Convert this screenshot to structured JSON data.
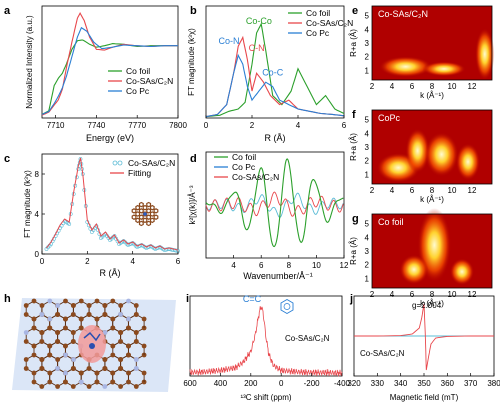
{
  "figure": {
    "panel_labels": [
      "a",
      "b",
      "c",
      "d",
      "e",
      "f",
      "g",
      "h",
      "i",
      "j"
    ]
  },
  "chart_data": [
    {
      "panel": "a",
      "type": "line",
      "xlabel": "Energy (eV)",
      "ylabel": "Normalized Intensity (a.u.)",
      "xlim": [
        7700,
        7800
      ],
      "xticks": [
        7710,
        7740,
        7770,
        7800
      ],
      "colors": {
        "Co foil": "#2ca02c",
        "Co-SAs/C2N": "#e8474c",
        "Co Pc": "#2a7fd4"
      },
      "legend": [
        "Co foil",
        "Co-SAs/C₂N",
        "Co Pc"
      ],
      "legend_position": "bottom-right",
      "series": [
        {
          "name": "Co foil",
          "x": [
            7700,
            7705,
            7709,
            7712,
            7715,
            7718,
            7722,
            7726,
            7730,
            7735,
            7740,
            7746,
            7752,
            7760,
            7770,
            7780,
            7790,
            7800
          ],
          "y": [
            0.05,
            0.1,
            0.45,
            0.55,
            0.62,
            0.75,
            0.95,
            1.07,
            1.08,
            1.02,
            0.98,
            1.0,
            1.03,
            1.02,
            0.99,
            1.0,
            1.0,
            1.0
          ]
        },
        {
          "name": "Co-SAs/C₂N",
          "x": [
            7700,
            7705,
            7709,
            7712,
            7715,
            7718,
            7722,
            7726,
            7728,
            7731,
            7735,
            7740,
            7746,
            7752,
            7760,
            7770,
            7780,
            7790,
            7800
          ],
          "y": [
            0.04,
            0.08,
            0.18,
            0.25,
            0.4,
            0.7,
            1.05,
            1.38,
            1.45,
            1.35,
            1.12,
            0.95,
            0.94,
            0.98,
            1.02,
            1.0,
            0.99,
            1.0,
            1.0
          ]
        },
        {
          "name": "Co Pc",
          "x": [
            7700,
            7705,
            7709,
            7712,
            7715,
            7718,
            7722,
            7726,
            7729,
            7733,
            7738,
            7744,
            7752,
            7760,
            7770,
            7780,
            7790,
            7800
          ],
          "y": [
            0.05,
            0.09,
            0.2,
            0.3,
            0.42,
            0.58,
            0.85,
            1.12,
            1.25,
            1.2,
            1.05,
            0.96,
            0.98,
            1.01,
            1.0,
            0.99,
            1.0,
            1.0
          ]
        }
      ]
    },
    {
      "panel": "b",
      "type": "line",
      "xlabel": "R (Å)",
      "ylabel": "FT magnitude (k³χ)",
      "xlim": [
        0,
        6
      ],
      "xticks": [
        0,
        2,
        4,
        6
      ],
      "legend": [
        "Co foil",
        "Co-SAs/C₂N",
        "Co Pc"
      ],
      "legend_position": "top-right",
      "annotations": [
        {
          "text": "Co-Co",
          "color": "#2ca02c",
          "x": 2.3,
          "y": 21
        },
        {
          "text": "Co-N",
          "color": "#2a7fd4",
          "x": 1.0,
          "y": 16.5
        },
        {
          "text": "C-N",
          "color": "#e8474c",
          "x": 2.2,
          "y": 15
        },
        {
          "text": "Co-C",
          "color": "#2a7fd4",
          "x": 2.9,
          "y": 9.5
        }
      ],
      "series": [
        {
          "name": "Co foil",
          "x": [
            0,
            0.6,
            1.0,
            1.4,
            1.7,
            2.0,
            2.2,
            2.4,
            2.6,
            2.9,
            3.3,
            3.7,
            4.0,
            4.4,
            4.8,
            5.2,
            5.6,
            6.0
          ],
          "y": [
            0.3,
            0.6,
            1.5,
            2.0,
            3.5,
            12,
            19,
            21,
            15,
            5,
            3,
            6,
            11,
            7,
            3,
            5,
            2,
            1
          ]
        },
        {
          "name": "Co-SAs/C₂N",
          "x": [
            0,
            0.5,
            0.9,
            1.2,
            1.4,
            1.6,
            1.8,
            2.0,
            2.2,
            2.5,
            2.8,
            3.2,
            3.6,
            4.0,
            4.5,
            5.0,
            5.5,
            6.0
          ],
          "y": [
            0.3,
            0.8,
            3,
            10,
            16,
            18,
            13,
            6,
            10,
            8,
            5,
            3,
            4,
            2,
            1.5,
            1,
            0.8,
            0.5
          ]
        },
        {
          "name": "Co Pc",
          "x": [
            0,
            0.5,
            0.9,
            1.2,
            1.4,
            1.6,
            1.8,
            2.0,
            2.3,
            2.6,
            2.9,
            3.2,
            3.6,
            4.0,
            4.5,
            5.0,
            5.5,
            6.0
          ],
          "y": [
            0.3,
            0.8,
            3,
            10,
            14,
            12,
            7,
            4,
            6,
            8,
            7,
            4,
            3,
            2,
            1.5,
            1,
            0.8,
            0.5
          ]
        }
      ]
    },
    {
      "panel": "c",
      "type": "line",
      "xlabel": "R (Å)",
      "ylabel": "FT magnitude (k³χ)",
      "xlim": [
        0,
        6
      ],
      "xticks": [
        0,
        2,
        4,
        6
      ],
      "legend": [
        "Co-SAs/C₂N",
        "Fitting"
      ],
      "legend_position": "top-right",
      "series": [
        {
          "name": "Co-SAs/C₂N",
          "style": "open circles",
          "x": [
            0.2,
            0.4,
            0.6,
            0.8,
            1.0,
            1.2,
            1.4,
            1.6,
            1.7,
            1.8,
            2.0,
            2.2,
            2.4,
            2.6,
            2.8,
            3.0,
            3.2,
            3.4,
            3.6,
            3.8,
            4.0,
            4.2,
            4.4,
            4.6,
            4.8,
            5.0,
            5.2,
            5.4,
            5.6,
            5.8,
            6.0
          ],
          "y": [
            0.5,
            1.0,
            1.8,
            2.6,
            3.3,
            3.0,
            6.0,
            8.5,
            9.5,
            8.0,
            3.2,
            2.2,
            2.8,
            1.6,
            2.0,
            1.4,
            1.8,
            1.0,
            1.3,
            0.9,
            1.1,
            0.7,
            0.9,
            0.6,
            0.8,
            0.5,
            0.7,
            0.4,
            0.5,
            0.4,
            0.3
          ]
        },
        {
          "name": "Fitting",
          "x": [
            0.2,
            0.4,
            0.6,
            0.8,
            1.0,
            1.2,
            1.4,
            1.6,
            1.7,
            1.8,
            2.0,
            2.2,
            2.4,
            2.6,
            2.8,
            3.0,
            3.2,
            3.4,
            3.6,
            3.8,
            4.0,
            4.2,
            4.4,
            4.6,
            4.8,
            5.0,
            5.2,
            5.4,
            5.6,
            5.8,
            6.0
          ],
          "y": [
            0.6,
            1.2,
            2.0,
            2.9,
            3.5,
            3.2,
            6.2,
            8.8,
            9.6,
            8.0,
            3.4,
            2.4,
            3.0,
            1.8,
            2.2,
            1.5,
            1.9,
            1.1,
            1.4,
            1.0,
            1.2,
            0.8,
            1.0,
            0.7,
            0.9,
            0.6,
            0.8,
            0.5,
            0.6,
            0.5,
            0.4
          ]
        }
      ]
    },
    {
      "panel": "d",
      "type": "line",
      "xlabel": "Wavenumber/Å⁻¹",
      "ylabel": "k²[χ(k)]/Å⁻³",
      "xlim": [
        2,
        12
      ],
      "xticks": [
        4,
        6,
        8,
        10,
        12
      ],
      "legend": [
        "Co foil",
        "Co Pc",
        "Co-SAs/C₂N"
      ],
      "legend_position": "top-right"
    },
    {
      "panel": "e",
      "type": "heatmap",
      "title": "Co-SAs/C₂N",
      "xlabel": "k (Å⁻¹)",
      "ylabel": "R+a (Å)",
      "xticks": [
        2,
        4,
        6,
        8,
        10,
        12
      ],
      "yticks": [
        1,
        2,
        3,
        4,
        5
      ]
    },
    {
      "panel": "f",
      "type": "heatmap",
      "title": "CoPc",
      "xlabel": "k (Å⁻¹)",
      "ylabel": "R+a (Å)",
      "xticks": [
        2,
        4,
        6,
        8,
        10,
        12
      ],
      "yticks": [
        1,
        2,
        3,
        4,
        5
      ]
    },
    {
      "panel": "g",
      "type": "heatmap",
      "title": "Co foil",
      "xlabel": "k (Å⁻¹)",
      "ylabel": "R+a (Å)",
      "xticks": [
        2,
        4,
        6,
        8,
        10,
        12
      ],
      "yticks": [
        1,
        2,
        3,
        4,
        5
      ]
    },
    {
      "panel": "i",
      "type": "line",
      "xlabel": "¹³C shift (ppm)",
      "xlim": [
        600,
        -400
      ],
      "xticks": [
        600,
        400,
        200,
        0,
        -200,
        -400
      ],
      "annotation": "C=C",
      "label": "Co-SAs/C₂N",
      "series": [
        {
          "name": "Co-SAs/C₂N",
          "x": [
            600,
            500,
            400,
            300,
            250,
            200,
            170,
            150,
            140,
            130,
            120,
            110,
            100,
            80,
            50,
            0,
            -100,
            -200,
            -300,
            -400
          ],
          "y": [
            0.05,
            0.06,
            0.08,
            0.12,
            0.2,
            0.35,
            0.6,
            0.85,
            0.95,
            1.0,
            0.92,
            0.75,
            0.55,
            0.3,
            0.15,
            0.08,
            0.06,
            0.05,
            0.05,
            0.04
          ]
        }
      ]
    },
    {
      "panel": "j",
      "type": "line",
      "xlabel": "Magnetic field (mT)",
      "xlim": [
        320,
        380
      ],
      "xticks": [
        320,
        330,
        340,
        350,
        360,
        370,
        380
      ],
      "annotation": "g=2.004",
      "label": "Co-SAs/C₂N",
      "series": [
        {
          "name": "Co-SAs/C₂N",
          "x": [
            320,
            330,
            340,
            345,
            348,
            349,
            350,
            350.5,
            351,
            352,
            353,
            355,
            360,
            370,
            380
          ],
          "y": [
            0,
            0,
            0.01,
            0.05,
            0.2,
            0.45,
            0.8,
            0.1,
            -0.85,
            -0.5,
            -0.2,
            -0.05,
            -0.01,
            0,
            0
          ]
        }
      ]
    }
  ]
}
